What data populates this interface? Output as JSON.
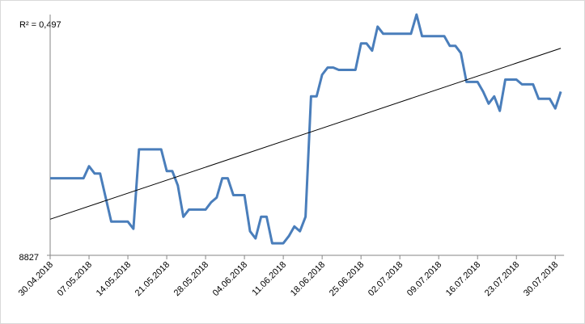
{
  "chart_data": {
    "type": "line",
    "annotation": "R² = 0,497",
    "categories": [
      "30.04.2018",
      null,
      null,
      null,
      null,
      null,
      null,
      "07.05.2018",
      null,
      null,
      null,
      null,
      null,
      null,
      "14.05.2018",
      null,
      null,
      null,
      null,
      null,
      null,
      "21.05.2018",
      null,
      null,
      null,
      null,
      null,
      null,
      "28.05.2018",
      null,
      null,
      null,
      null,
      null,
      null,
      "04.06.2018",
      null,
      null,
      null,
      null,
      null,
      null,
      "11.06.2018",
      null,
      null,
      null,
      null,
      null,
      null,
      "18.06.2018",
      null,
      null,
      null,
      null,
      null,
      null,
      "25.06.2018",
      null,
      null,
      null,
      null,
      null,
      null,
      "02.07.2018",
      null,
      null,
      null,
      null,
      null,
      null,
      "09.07.2018",
      null,
      null,
      null,
      null,
      null,
      null,
      "16.07.2018",
      null,
      null,
      null,
      null,
      null,
      null,
      "23.07.2018",
      null,
      null,
      null,
      null,
      null,
      null,
      "30.07.2018",
      null
    ],
    "series": [
      {
        "color": "#4a7ebb",
        "values": [
          8859,
          8859,
          8859,
          8859,
          8859,
          8859,
          8859,
          8864,
          8861,
          8861,
          8851,
          8841,
          8841,
          8841,
          8841,
          8838,
          8871,
          8871,
          8871,
          8871,
          8871,
          8862,
          8862,
          8856,
          8843,
          8846,
          8846,
          8846,
          8846,
          8849,
          8851,
          8859,
          8859,
          8852,
          8852,
          8852,
          8837,
          8834,
          8843,
          8843,
          8832,
          8832,
          8832,
          8835,
          8839,
          8837,
          8843,
          8893,
          8893,
          8902,
          8905,
          8905,
          8904,
          8904,
          8904,
          8904,
          8915,
          8915,
          8912,
          8922,
          8919,
          8919,
          8919,
          8919,
          8919,
          8919,
          8927,
          8918,
          8918,
          8918,
          8918,
          8918,
          8914,
          8914,
          8911,
          8899,
          8899,
          8899,
          8895,
          8890,
          8893,
          8887,
          8900,
          8900,
          8900,
          8898,
          8898,
          8898,
          8892,
          8892,
          8892,
          8888,
          8895
        ]
      }
    ],
    "trendline": {
      "color": "#000000",
      "start": 8842,
      "end": 8913
    },
    "ylim": [
      8827,
      8927
    ],
    "yticks": [
      8827
    ]
  }
}
